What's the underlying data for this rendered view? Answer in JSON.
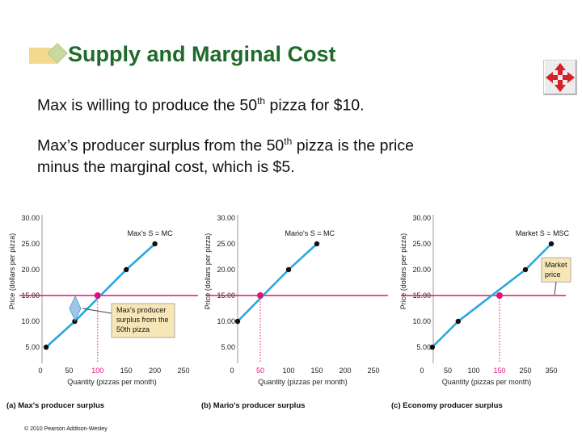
{
  "slide": {
    "title": "Supply and Marginal Cost",
    "line1_pre": "Max is willing to produce the 50",
    "line1_sup": "th",
    "line1_post": " pizza for $10.",
    "line2_pre": "Max’s producer surplus from the 50",
    "line2_sup": "th",
    "line2_post": " pizza is the price",
    "line3": "minus the marginal cost, which is $5.",
    "copyright": "© 2010 Pearson Addison-Wesley"
  },
  "chart_data": [
    {
      "type": "line",
      "panel_label": "(a) Max's producer surplus",
      "xlabel": "Quantity (pizzas per month)",
      "ylabel": "Price (dollars per pizza)",
      "xlim": [
        0,
        250
      ],
      "ylim": [
        0,
        30
      ],
      "x_ticks": [
        "0",
        "50",
        "100",
        "150",
        "200",
        "250"
      ],
      "y_ticks": [
        "5.00",
        "10.00",
        "15.00",
        "20.00",
        "25.00",
        "30.00"
      ],
      "x_tick_values": [
        0,
        50,
        100,
        150,
        200,
        250
      ],
      "y_tick_values": [
        5,
        10,
        15,
        20,
        25,
        30
      ],
      "series": [
        {
          "name": "Max's S = MC",
          "x": [
            10,
            60,
            150,
            200
          ],
          "y": [
            5,
            10,
            20,
            25
          ]
        }
      ],
      "price_line": 15,
      "equilibrium": {
        "x": 100,
        "y": 15
      },
      "highlight_x_label": "100",
      "annotation": [
        "Max's producer",
        "surplus from the",
        "50th pizza"
      ]
    },
    {
      "type": "line",
      "panel_label": "(b) Mario's producer surplus",
      "xlabel": "Quantity (pizzas per month)",
      "ylabel": "Price (dollars per pizza)",
      "xlim": [
        0,
        250
      ],
      "ylim": [
        0,
        30
      ],
      "x_ticks": [
        "0",
        "50",
        "100",
        "150",
        "200",
        "250"
      ],
      "y_ticks": [
        "5.00",
        "10.00",
        "15.00",
        "20.00",
        "25.00",
        "30.00"
      ],
      "x_tick_values": [
        0,
        50,
        100,
        150,
        200,
        250
      ],
      "y_tick_values": [
        5,
        10,
        15,
        20,
        25,
        30
      ],
      "series": [
        {
          "name": "Mario's S = MC",
          "x": [
            10,
            100,
            150
          ],
          "y": [
            10,
            20,
            25
          ]
        }
      ],
      "price_line": 15,
      "equilibrium": {
        "x": 50,
        "y": 15
      },
      "highlight_x_label": "50"
    },
    {
      "type": "line",
      "panel_label": "(c) Economy producer surplus",
      "xlabel": "Quantity (pizzas per month)",
      "ylabel": "Price (dollars per pizza)",
      "xlim": [
        0,
        350
      ],
      "ylim": [
        0,
        30
      ],
      "x_ticks": [
        "0",
        "50",
        "100",
        "150",
        "250",
        "350"
      ],
      "y_ticks": [
        "5.00",
        "10.00",
        "15.00",
        "20.00",
        "25.00",
        "30.00"
      ],
      "x_tick_values": [
        0,
        50,
        100,
        150,
        250,
        350
      ],
      "y_tick_values": [
        5,
        10,
        15,
        20,
        25,
        30
      ],
      "series": [
        {
          "name": "Market S = MSC",
          "x": [
            20,
            70,
            250,
            350
          ],
          "y": [
            5,
            10,
            20,
            25
          ]
        }
      ],
      "price_line": 15,
      "equilibrium": {
        "x": 150,
        "y": 15
      },
      "highlight_x_label": "150",
      "callout": [
        "Market",
        "price"
      ]
    }
  ],
  "colors": {
    "supply": "#29a8df",
    "price": "#e0127a",
    "title": "#1f6b2a",
    "annotation_bg": "#f7e7b7",
    "callout_bg": "#f7e7b7"
  }
}
